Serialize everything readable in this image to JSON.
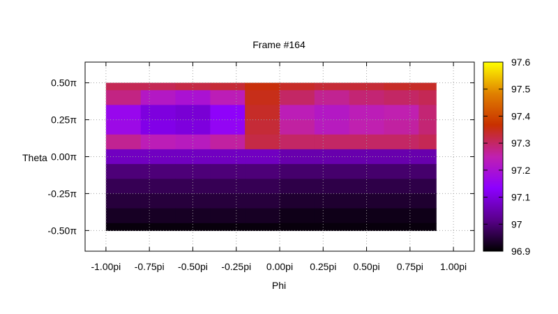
{
  "chart_data": {
    "type": "heatmap",
    "title": "Frame #164",
    "xlabel": "Phi",
    "ylabel": "Theta",
    "x_ticks": [
      {
        "value": -1.0,
        "label": "-1.00pi"
      },
      {
        "value": -0.75,
        "label": "-0.75pi"
      },
      {
        "value": -0.5,
        "label": "-0.50pi"
      },
      {
        "value": -0.25,
        "label": "-0.25pi"
      },
      {
        "value": 0.0,
        "label": "0.00pi"
      },
      {
        "value": 0.25,
        "label": "0.25pi"
      },
      {
        "value": 0.5,
        "label": "0.50pi"
      },
      {
        "value": 0.75,
        "label": "0.75pi"
      },
      {
        "value": 1.0,
        "label": "1.00pi"
      }
    ],
    "y_ticks": [
      {
        "value": 0.5,
        "label": "0.50π"
      },
      {
        "value": 0.25,
        "label": "0.25π"
      },
      {
        "value": 0.0,
        "label": "0.00π"
      },
      {
        "value": -0.25,
        "label": "-0.25π"
      },
      {
        "value": -0.5,
        "label": "-0.50π"
      }
    ],
    "xlim": [
      -1.12,
      1.12
    ],
    "ylim": [
      -0.64,
      0.64
    ],
    "grid": true,
    "colorbar": {
      "range": [
        96.9,
        97.6
      ],
      "ticks": [
        {
          "value": 97.6,
          "label": "97.6"
        },
        {
          "value": 97.5,
          "label": "97.5"
        },
        {
          "value": 97.4,
          "label": "97.4"
        },
        {
          "value": 97.3,
          "label": "97.3"
        },
        {
          "value": 97.2,
          "label": "97.2"
        },
        {
          "value": 97.1,
          "label": "97.1"
        },
        {
          "value": 97.0,
          "label": "97"
        },
        {
          "value": 96.9,
          "label": "96.9"
        }
      ],
      "palette": [
        "#000000",
        "#5a008c",
        "#8c00ff",
        "#c020b0",
        "#c83000",
        "#e08000",
        "#ffff00"
      ]
    },
    "x_values": [
      -1.0,
      -0.8,
      -0.6,
      -0.4,
      -0.2,
      0.0,
      0.2,
      0.4,
      0.6,
      0.8
    ],
    "y_values": [
      0.5,
      0.4,
      0.3,
      0.2,
      0.1,
      0.0,
      -0.1,
      -0.2,
      -0.3,
      -0.4,
      -0.5
    ],
    "values": [
      [
        97.31,
        97.31,
        97.32,
        97.33,
        97.36,
        97.34,
        97.33,
        97.33,
        97.34,
        97.34
      ],
      [
        97.28,
        97.22,
        97.2,
        97.24,
        97.35,
        97.3,
        97.27,
        97.29,
        97.3,
        97.31
      ],
      [
        97.16,
        97.1,
        97.09,
        97.14,
        97.34,
        97.24,
        97.22,
        97.24,
        97.25,
        97.29
      ],
      [
        97.17,
        97.11,
        97.1,
        97.15,
        97.33,
        97.26,
        97.23,
        97.25,
        97.26,
        97.29
      ],
      [
        97.27,
        97.24,
        97.23,
        97.26,
        97.32,
        97.3,
        97.3,
        97.3,
        97.3,
        97.31
      ],
      [
        97.07,
        97.07,
        97.07,
        97.07,
        97.07,
        97.05,
        97.05,
        97.05,
        97.05,
        97.05
      ],
      [
        97.0,
        97.0,
        97.0,
        97.0,
        97.0,
        96.99,
        96.99,
        96.99,
        96.99,
        96.99
      ],
      [
        96.97,
        96.97,
        96.97,
        96.97,
        96.97,
        96.96,
        96.96,
        96.96,
        96.96,
        96.96
      ],
      [
        96.95,
        96.95,
        96.95,
        96.95,
        96.95,
        96.94,
        96.94,
        96.94,
        96.94,
        96.94
      ],
      [
        96.93,
        96.93,
        96.93,
        96.93,
        96.93,
        96.92,
        96.92,
        96.92,
        96.92,
        96.92
      ],
      [
        96.91,
        96.91,
        96.91,
        96.91,
        96.91,
        96.91,
        96.91,
        96.91,
        96.91,
        96.91
      ]
    ]
  }
}
